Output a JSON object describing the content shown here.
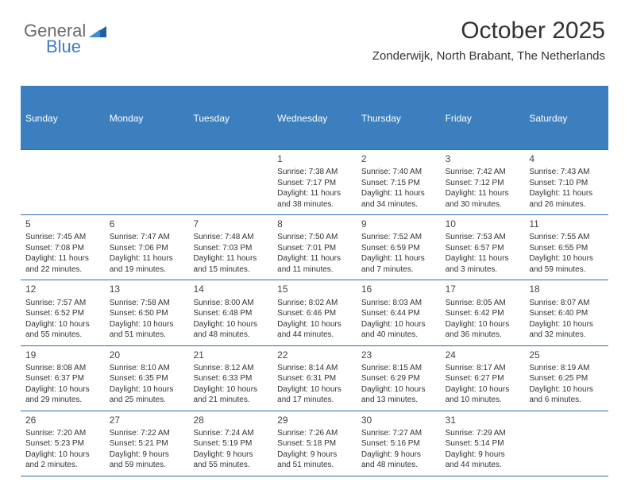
{
  "brand": {
    "part1": "General",
    "part2": "Blue"
  },
  "header": {
    "month_title": "October 2025",
    "location": "Zonderwijk, North Brabant, The Netherlands"
  },
  "colors": {
    "accent": "#3b7fbf",
    "text": "#333333",
    "muted_text": "#6b6b6b",
    "background": "#ffffff"
  },
  "weekdays": [
    "Sunday",
    "Monday",
    "Tuesday",
    "Wednesday",
    "Thursday",
    "Friday",
    "Saturday"
  ],
  "weeks": [
    [
      {
        "day": "",
        "sunrise": "",
        "sunset": "",
        "daylight": ""
      },
      {
        "day": "",
        "sunrise": "",
        "sunset": "",
        "daylight": ""
      },
      {
        "day": "",
        "sunrise": "",
        "sunset": "",
        "daylight": ""
      },
      {
        "day": "1",
        "sunrise": "Sunrise: 7:38 AM",
        "sunset": "Sunset: 7:17 PM",
        "daylight": "Daylight: 11 hours and 38 minutes."
      },
      {
        "day": "2",
        "sunrise": "Sunrise: 7:40 AM",
        "sunset": "Sunset: 7:15 PM",
        "daylight": "Daylight: 11 hours and 34 minutes."
      },
      {
        "day": "3",
        "sunrise": "Sunrise: 7:42 AM",
        "sunset": "Sunset: 7:12 PM",
        "daylight": "Daylight: 11 hours and 30 minutes."
      },
      {
        "day": "4",
        "sunrise": "Sunrise: 7:43 AM",
        "sunset": "Sunset: 7:10 PM",
        "daylight": "Daylight: 11 hours and 26 minutes."
      }
    ],
    [
      {
        "day": "5",
        "sunrise": "Sunrise: 7:45 AM",
        "sunset": "Sunset: 7:08 PM",
        "daylight": "Daylight: 11 hours and 22 minutes."
      },
      {
        "day": "6",
        "sunrise": "Sunrise: 7:47 AM",
        "sunset": "Sunset: 7:06 PM",
        "daylight": "Daylight: 11 hours and 19 minutes."
      },
      {
        "day": "7",
        "sunrise": "Sunrise: 7:48 AM",
        "sunset": "Sunset: 7:03 PM",
        "daylight": "Daylight: 11 hours and 15 minutes."
      },
      {
        "day": "8",
        "sunrise": "Sunrise: 7:50 AM",
        "sunset": "Sunset: 7:01 PM",
        "daylight": "Daylight: 11 hours and 11 minutes."
      },
      {
        "day": "9",
        "sunrise": "Sunrise: 7:52 AM",
        "sunset": "Sunset: 6:59 PM",
        "daylight": "Daylight: 11 hours and 7 minutes."
      },
      {
        "day": "10",
        "sunrise": "Sunrise: 7:53 AM",
        "sunset": "Sunset: 6:57 PM",
        "daylight": "Daylight: 11 hours and 3 minutes."
      },
      {
        "day": "11",
        "sunrise": "Sunrise: 7:55 AM",
        "sunset": "Sunset: 6:55 PM",
        "daylight": "Daylight: 10 hours and 59 minutes."
      }
    ],
    [
      {
        "day": "12",
        "sunrise": "Sunrise: 7:57 AM",
        "sunset": "Sunset: 6:52 PM",
        "daylight": "Daylight: 10 hours and 55 minutes."
      },
      {
        "day": "13",
        "sunrise": "Sunrise: 7:58 AM",
        "sunset": "Sunset: 6:50 PM",
        "daylight": "Daylight: 10 hours and 51 minutes."
      },
      {
        "day": "14",
        "sunrise": "Sunrise: 8:00 AM",
        "sunset": "Sunset: 6:48 PM",
        "daylight": "Daylight: 10 hours and 48 minutes."
      },
      {
        "day": "15",
        "sunrise": "Sunrise: 8:02 AM",
        "sunset": "Sunset: 6:46 PM",
        "daylight": "Daylight: 10 hours and 44 minutes."
      },
      {
        "day": "16",
        "sunrise": "Sunrise: 8:03 AM",
        "sunset": "Sunset: 6:44 PM",
        "daylight": "Daylight: 10 hours and 40 minutes."
      },
      {
        "day": "17",
        "sunrise": "Sunrise: 8:05 AM",
        "sunset": "Sunset: 6:42 PM",
        "daylight": "Daylight: 10 hours and 36 minutes."
      },
      {
        "day": "18",
        "sunrise": "Sunrise: 8:07 AM",
        "sunset": "Sunset: 6:40 PM",
        "daylight": "Daylight: 10 hours and 32 minutes."
      }
    ],
    [
      {
        "day": "19",
        "sunrise": "Sunrise: 8:08 AM",
        "sunset": "Sunset: 6:37 PM",
        "daylight": "Daylight: 10 hours and 29 minutes."
      },
      {
        "day": "20",
        "sunrise": "Sunrise: 8:10 AM",
        "sunset": "Sunset: 6:35 PM",
        "daylight": "Daylight: 10 hours and 25 minutes."
      },
      {
        "day": "21",
        "sunrise": "Sunrise: 8:12 AM",
        "sunset": "Sunset: 6:33 PM",
        "daylight": "Daylight: 10 hours and 21 minutes."
      },
      {
        "day": "22",
        "sunrise": "Sunrise: 8:14 AM",
        "sunset": "Sunset: 6:31 PM",
        "daylight": "Daylight: 10 hours and 17 minutes."
      },
      {
        "day": "23",
        "sunrise": "Sunrise: 8:15 AM",
        "sunset": "Sunset: 6:29 PM",
        "daylight": "Daylight: 10 hours and 13 minutes."
      },
      {
        "day": "24",
        "sunrise": "Sunrise: 8:17 AM",
        "sunset": "Sunset: 6:27 PM",
        "daylight": "Daylight: 10 hours and 10 minutes."
      },
      {
        "day": "25",
        "sunrise": "Sunrise: 8:19 AM",
        "sunset": "Sunset: 6:25 PM",
        "daylight": "Daylight: 10 hours and 6 minutes."
      }
    ],
    [
      {
        "day": "26",
        "sunrise": "Sunrise: 7:20 AM",
        "sunset": "Sunset: 5:23 PM",
        "daylight": "Daylight: 10 hours and 2 minutes."
      },
      {
        "day": "27",
        "sunrise": "Sunrise: 7:22 AM",
        "sunset": "Sunset: 5:21 PM",
        "daylight": "Daylight: 9 hours and 59 minutes."
      },
      {
        "day": "28",
        "sunrise": "Sunrise: 7:24 AM",
        "sunset": "Sunset: 5:19 PM",
        "daylight": "Daylight: 9 hours and 55 minutes."
      },
      {
        "day": "29",
        "sunrise": "Sunrise: 7:26 AM",
        "sunset": "Sunset: 5:18 PM",
        "daylight": "Daylight: 9 hours and 51 minutes."
      },
      {
        "day": "30",
        "sunrise": "Sunrise: 7:27 AM",
        "sunset": "Sunset: 5:16 PM",
        "daylight": "Daylight: 9 hours and 48 minutes."
      },
      {
        "day": "31",
        "sunrise": "Sunrise: 7:29 AM",
        "sunset": "Sunset: 5:14 PM",
        "daylight": "Daylight: 9 hours and 44 minutes."
      },
      {
        "day": "",
        "sunrise": "",
        "sunset": "",
        "daylight": ""
      }
    ]
  ]
}
